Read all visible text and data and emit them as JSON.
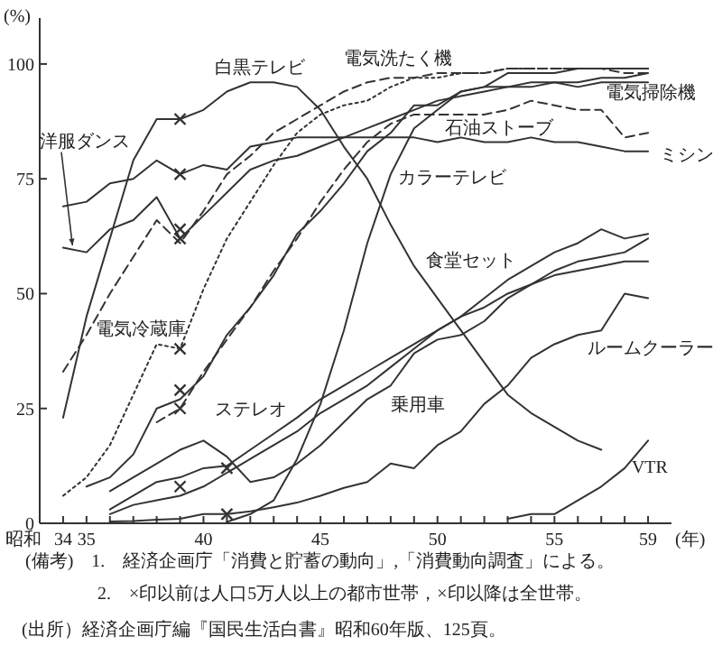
{
  "chart_data": {
    "type": "line",
    "ylabel": "(%)",
    "xlabel": "(年)",
    "xlim": [
      33,
      60
    ],
    "ylim": [
      0,
      110
    ],
    "yticks": [
      0,
      25,
      50,
      75,
      100
    ],
    "xticks": [
      34,
      35,
      {
        "value": 36,
        "label": null
      },
      {
        "value": 37,
        "label": null
      },
      {
        "value": 38,
        "label": null
      },
      {
        "value": 39,
        "label": null
      },
      40,
      {
        "value": 41,
        "label": null
      },
      {
        "value": 42,
        "label": null
      },
      {
        "value": 43,
        "label": null
      },
      {
        "value": 44,
        "label": null
      },
      45,
      {
        "value": 46,
        "label": null
      },
      {
        "value": 47,
        "label": null
      },
      {
        "value": 48,
        "label": null
      },
      {
        "value": 49,
        "label": null
      },
      50,
      {
        "value": 51,
        "label": null
      },
      {
        "value": 52,
        "label": null
      },
      {
        "value": 53,
        "label": null
      },
      {
        "value": 54,
        "label": null
      },
      55,
      {
        "value": 56,
        "label": null
      },
      {
        "value": 57,
        "label": null
      },
      {
        "value": 58,
        "label": null
      },
      59
    ],
    "series": [
      {
        "name": "白黒テレビ",
        "color": "#333333",
        "line_style": "solid",
        "x": [
          34,
          35,
          36,
          37,
          38,
          39,
          40,
          41,
          42,
          43,
          44,
          45,
          46,
          47,
          48,
          49,
          50,
          51,
          52,
          53,
          54,
          55,
          56,
          57
        ],
        "values": [
          23,
          45,
          62,
          79,
          88,
          88,
          90,
          94,
          96,
          96,
          95,
          90,
          82,
          75,
          65,
          56,
          49,
          42,
          35,
          28,
          24,
          21,
          18,
          16
        ]
      },
      {
        "name": "電気洗たく機",
        "color": "#333333",
        "line_style": "dashed",
        "x": [
          34,
          35,
          36,
          37,
          38,
          39,
          40,
          41,
          42,
          43,
          44,
          45,
          46,
          47,
          48,
          49,
          50,
          51,
          52,
          53,
          54,
          55,
          56,
          57,
          58,
          59
        ],
        "values": [
          33,
          41,
          50,
          58,
          66,
          61,
          68,
          76,
          80,
          85,
          88,
          91,
          94,
          96,
          97,
          97,
          98,
          98,
          98,
          99,
          99,
          99,
          99,
          99,
          98,
          98
        ]
      },
      {
        "name": "電気冷蔵庫",
        "color": "#333333",
        "line_style": "dotted",
        "x": [
          34,
          35,
          36,
          37,
          38,
          39,
          40,
          41,
          42,
          43,
          44,
          45,
          46,
          47,
          48,
          49,
          50,
          51,
          52,
          53,
          54,
          55,
          56,
          57,
          58,
          59
        ],
        "values": [
          6,
          10,
          17,
          28,
          39,
          38,
          51,
          62,
          70,
          78,
          85,
          89,
          91,
          92,
          95,
          97,
          97,
          98,
          98,
          99,
          99,
          99,
          99,
          99,
          99,
          99
        ]
      },
      {
        "name": "電気掃除機",
        "color": "#333333",
        "line_style": "solid",
        "x": [
          35,
          36,
          37,
          38,
          39,
          40,
          41,
          42,
          43,
          44,
          45,
          46,
          47,
          48,
          49,
          50,
          51,
          52,
          53,
          54,
          55,
          56,
          57,
          58,
          59
        ],
        "values": [
          8,
          10,
          15,
          25,
          27,
          32,
          41,
          47,
          54,
          63,
          68,
          74,
          81,
          85,
          91,
          91,
          94,
          95,
          95,
          96,
          96,
          96,
          97,
          97,
          98
        ]
      },
      {
        "name": "カラーテレビ",
        "color": "#333333",
        "line_style": "solid",
        "x": [
          41,
          42,
          43,
          44,
          45,
          46,
          47,
          48,
          49,
          50,
          51,
          52,
          53,
          54,
          55,
          56,
          57,
          58,
          59
        ],
        "values": [
          0.3,
          2,
          5,
          14,
          26,
          42,
          61,
          76,
          86,
          90,
          94,
          95,
          98,
          98,
          98,
          99,
          99,
          99,
          99
        ]
      },
      {
        "name": "石油ストーブ",
        "color": "#333333",
        "line_style": "dashed",
        "x": [
          38,
          39,
          40,
          41,
          42,
          43,
          44,
          45,
          46,
          47,
          48,
          49,
          50,
          51,
          52,
          53,
          54,
          55,
          56,
          57,
          58,
          59
        ],
        "values": [
          22,
          25,
          33,
          40,
          47,
          55,
          62,
          70,
          77,
          83,
          87,
          89,
          89,
          89,
          89,
          90,
          92,
          91,
          90,
          90,
          84,
          85
        ]
      },
      {
        "name": "ミシン",
        "color": "#333333",
        "line_style": "solid",
        "x": [
          34,
          35,
          36,
          37,
          38,
          39,
          40,
          41,
          42,
          43,
          44,
          45,
          46,
          47,
          48,
          49,
          50,
          51,
          52,
          53,
          54,
          55,
          56,
          57,
          58,
          59
        ],
        "values": [
          69,
          70,
          74,
          75,
          79,
          76,
          78,
          77,
          82,
          83,
          84,
          84,
          84,
          84,
          84,
          84,
          83,
          84,
          83,
          83,
          84,
          83,
          83,
          82,
          81,
          81
        ]
      },
      {
        "name": "洋服ダンス",
        "color": "#333333",
        "line_style": "solid",
        "x": [
          34,
          35,
          36,
          37,
          38,
          39,
          40,
          41,
          42,
          43,
          44,
          45,
          46,
          47,
          48,
          49,
          50,
          51,
          52,
          53,
          54,
          55,
          56,
          57,
          58,
          59
        ],
        "values": [
          60,
          59,
          64,
          66,
          71,
          62,
          67,
          72,
          77,
          79,
          80,
          82,
          84,
          86,
          88,
          90,
          92,
          93,
          94,
          95,
          95,
          96,
          95,
          96,
          96,
          96
        ]
      },
      {
        "name": "乗用車",
        "color": "#333333",
        "line_style": "solid",
        "x": [
          36,
          37,
          38,
          39,
          40,
          41,
          42,
          43,
          44,
          45,
          46,
          47,
          48,
          49,
          50,
          51,
          52,
          53,
          54,
          55,
          56,
          57,
          58,
          59
        ],
        "values": [
          7,
          10,
          13,
          16,
          18,
          14.5,
          9,
          10,
          13,
          17,
          22,
          27,
          30,
          37,
          40,
          41,
          44,
          49,
          52,
          55,
          57,
          58,
          59,
          62
        ]
      },
      {
        "name": "ステレオ",
        "color": "#333333",
        "line_style": "solid",
        "x": [
          36,
          37,
          38,
          39,
          40,
          41,
          42,
          43,
          44,
          45,
          46,
          47,
          48,
          49,
          50,
          51,
          52,
          53,
          54,
          55,
          56,
          57,
          58,
          59
        ],
        "values": [
          3,
          6,
          9,
          10,
          12,
          12.5,
          16,
          19.5,
          23,
          27,
          30,
          33,
          36,
          39,
          42,
          45,
          47,
          50,
          52,
          54,
          55,
          56,
          57,
          57
        ]
      },
      {
        "name": "食堂セット",
        "color": "#333333",
        "line_style": "solid",
        "x": [
          36,
          37,
          38,
          39,
          40,
          41,
          42,
          43,
          44,
          45,
          46,
          47,
          48,
          49,
          50,
          51,
          52,
          53,
          54,
          55,
          56,
          57,
          58,
          59
        ],
        "values": [
          2,
          4,
          5,
          6,
          8,
          11,
          14,
          17,
          20,
          24,
          27,
          30,
          34,
          38,
          42,
          45,
          49,
          53,
          56,
          59,
          61,
          64,
          62,
          63
        ]
      },
      {
        "name": "ルームクーラー",
        "color": "#333333",
        "line_style": "solid",
        "x": [
          36,
          37,
          38,
          39,
          40,
          41,
          42,
          43,
          44,
          45,
          46,
          47,
          48,
          49,
          50,
          51,
          52,
          53,
          54,
          55,
          56,
          57,
          58,
          59
        ],
        "values": [
          0.4,
          0.5,
          0.8,
          1,
          2,
          2,
          2.6,
          3.5,
          4.5,
          6,
          7.7,
          9,
          13,
          12,
          17,
          20,
          26,
          30,
          36,
          39,
          41,
          42,
          50,
          49
        ]
      },
      {
        "name": "VTR",
        "color": "#333333",
        "line_style": "solid",
        "x": [
          53,
          54,
          55,
          56,
          57,
          58,
          59
        ],
        "values": [
          1,
          2,
          2,
          5,
          8,
          12,
          18
        ]
      },
      {
        "type": "scatter",
        "marker": "cross",
        "color": "#333333",
        "x": [
          39,
          39,
          39,
          39,
          39,
          39,
          39,
          39,
          41,
          41
        ],
        "values": [
          88,
          76,
          62,
          64,
          38,
          29,
          25,
          8,
          12,
          2
        ]
      }
    ],
    "annotations": [
      "(備考)　1.　経済企画庁「消費と貯蓄の動向」,「消費動向調査」による。",
      "2.　×印以前は人口5万人以上の都市世帯，×印以降は全世帯。",
      "(出所）経済企画庁編『国民生活白書』昭和60年版、125頁。",
      "昭和"
    ]
  }
}
